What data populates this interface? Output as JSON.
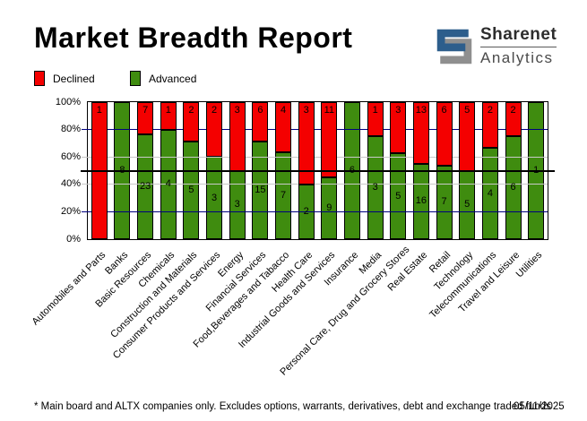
{
  "header": {
    "title": "Market Breadth Report",
    "logo": {
      "brand": "Sharenet",
      "sub": "Analytics",
      "blue": "#2D5E8C",
      "gray": "#8F8F8F"
    }
  },
  "legend": {
    "declined_label": "Declined",
    "advanced_label": "Advanced"
  },
  "footer": {
    "note": "* Main board and ALTX companies only. Excludes options, warrants, derivatives, debt and exchange traded funds",
    "date": "05/11/2025"
  },
  "chart_data": {
    "type": "bar",
    "stacked": true,
    "stack_mode": "percent",
    "title": "Market Breadth Report",
    "categories": [
      "Automobiles and Parts",
      "Banks",
      "Basic Resources",
      "Chemicals",
      "Construction and Materials",
      "Consumer Products and Services",
      "Energy",
      "Financial Services",
      "Food,Beverages and Tabacco",
      "Health Care",
      "Industrial Goods and Services",
      "Insurance",
      "Media",
      "Personal Care, Drug and Grocery Stores",
      "Real Estate",
      "Retail",
      "Technology",
      "Telecommunications",
      "Travel and Leisure",
      "Utilities"
    ],
    "series": [
      {
        "name": "Advanced",
        "color": "#3F8C0F",
        "values": [
          0,
          8,
          23,
          4,
          5,
          3,
          3,
          15,
          7,
          2,
          9,
          6,
          3,
          5,
          16,
          7,
          5,
          4,
          6,
          1
        ]
      },
      {
        "name": "Declined",
        "color": "#F40000",
        "values": [
          1,
          0,
          7,
          1,
          2,
          2,
          3,
          6,
          4,
          3,
          11,
          0,
          1,
          3,
          13,
          6,
          5,
          2,
          2,
          0
        ]
      }
    ],
    "y_ticks": [
      "0%",
      "20%",
      "40%",
      "60%",
      "80%",
      "100%"
    ],
    "ylim": [
      0,
      100
    ],
    "grid": {
      "navy_levels": [
        20,
        80
      ],
      "gray_levels": [
        40,
        60
      ],
      "black_level": 50,
      "navy_color": "#000080",
      "gray_color": "#C9C9C9",
      "black_color": "#000000"
    },
    "legend_position": "top-left"
  }
}
